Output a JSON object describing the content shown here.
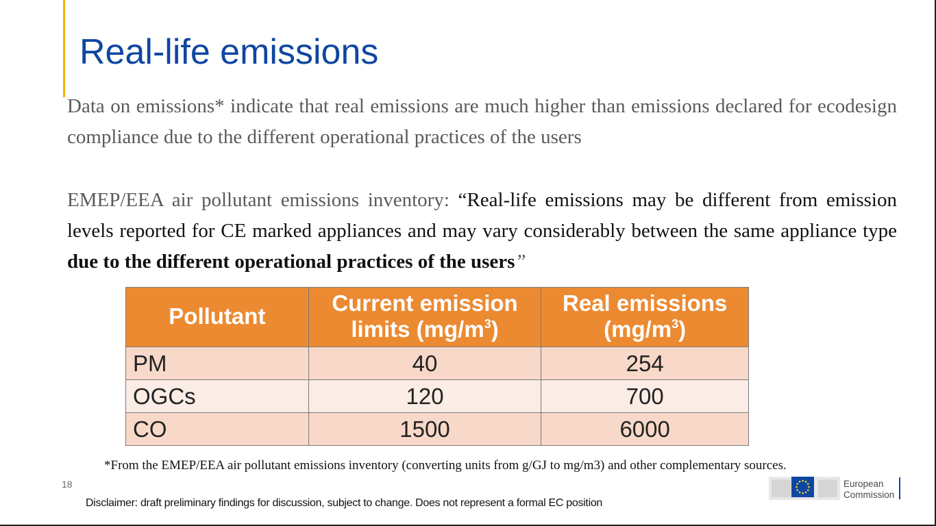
{
  "slide": {
    "title": "Real-life emissions",
    "para1": "Data on emissions* indicate that real emissions are much higher than emissions declared for ecodesign compliance due to the different operational practices of the users",
    "para2": {
      "lead": "EMEP/EEA air pollutant emissions inventory: ",
      "open_quote": "“",
      "quote_plain": "Real-life emissions may be different from emission levels reported for CE marked appliances and may vary considerably between the same appliance type ",
      "quote_bold": "due to the different operational practices of the users",
      "close_quote": "”"
    },
    "table": {
      "headers": [
        {
          "text": "Pollutant",
          "sup": ""
        },
        {
          "text": "Current emission limits (mg/m",
          "sup": "3",
          "close": ")"
        },
        {
          "text": "Real emissions (mg/m",
          "sup": "3",
          "close": ")"
        }
      ],
      "rows": [
        {
          "pollutant": "PM",
          "limit": "40",
          "real": "254"
        },
        {
          "pollutant": "OGCs",
          "limit": "120",
          "real": "700"
        },
        {
          "pollutant": "CO",
          "limit": "1500",
          "real": "6000"
        }
      ]
    },
    "footnote": "*From the EMEP/EEA air pollutant emissions inventory (converting units from g/GJ to mg/m3) and other complementary sources.",
    "page_number": "18",
    "disclaimer": "Disclaimer: draft preliminary findings for discussion, subject to change. Does not represent a formal EC position",
    "logo": {
      "line1": "European",
      "line2": "Commission",
      "flag_color": "#0e47a1",
      "star_color": "#ffd617"
    }
  }
}
